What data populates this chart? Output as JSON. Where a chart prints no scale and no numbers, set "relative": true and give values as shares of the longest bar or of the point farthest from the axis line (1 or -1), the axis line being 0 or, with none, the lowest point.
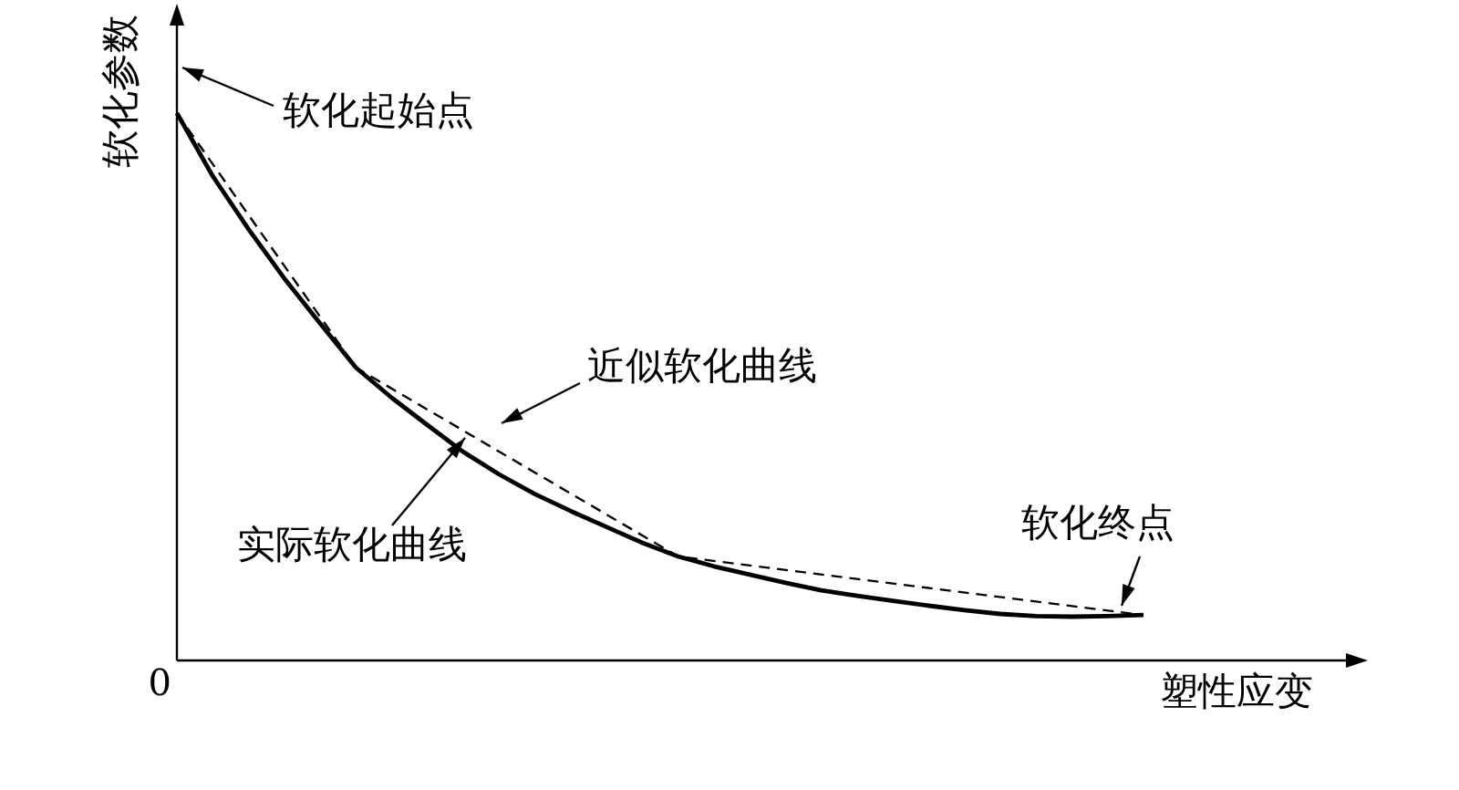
{
  "chart_data": {
    "type": "line",
    "relative": true,
    "xlabel": "塑性应变",
    "ylabel": "软化参数",
    "legend": false,
    "marker": "none",
    "categories": [
      null,
      null,
      null,
      null,
      null,
      null,
      null,
      null,
      null,
      null,
      null,
      null,
      null,
      null,
      null,
      null,
      null,
      null,
      null,
      null,
      null,
      null,
      null,
      null,
      null,
      null,
      null,
      null
    ],
    "series": [
      {
        "type": "line",
        "color": "#000000",
        "line_style": "solid",
        "values": [
          1,
          0.885,
          0.788,
          0.698,
          0.616,
          0.535,
          0.48,
          0.43,
          0.381,
          0.34,
          0.304,
          0.273,
          0.244,
          0.215,
          0.19,
          0.172,
          0.157,
          0.142,
          0.128,
          0.118,
          0.109,
          0.1,
          0.092,
          0.085,
          0.081,
          0.08,
          0.081,
          0.083
        ]
      },
      {
        "type": "line",
        "color": "#000000",
        "line_style": "dashed",
        "values": [
          1,
          null,
          null,
          null,
          null,
          0.535,
          null,
          null,
          null,
          null,
          null,
          null,
          null,
          null,
          0.19,
          null,
          null,
          null,
          null,
          null,
          null,
          null,
          null,
          null,
          null,
          null,
          null,
          0.083
        ]
      }
    ],
    "annotations": [
      "0",
      "软化起始点",
      "近似软化曲线",
      "实际软化曲线",
      "软化终点"
    ]
  }
}
